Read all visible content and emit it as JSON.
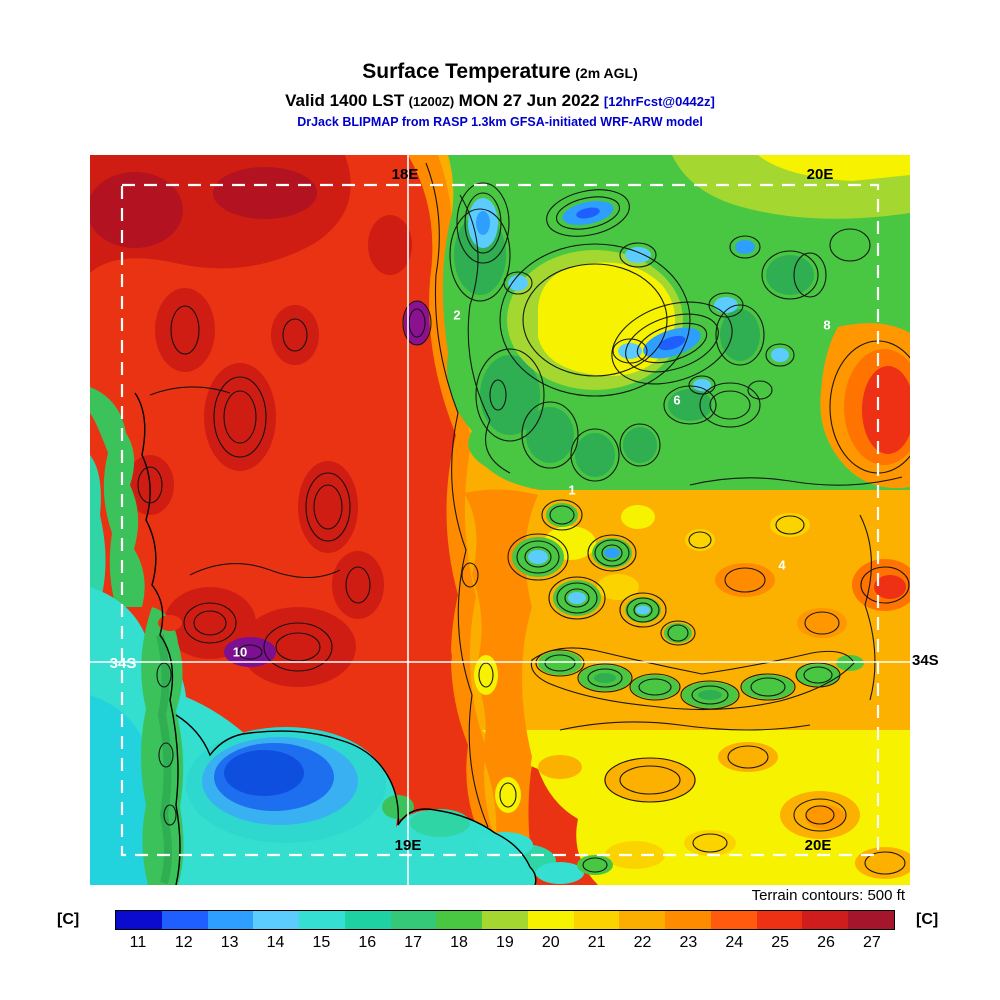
{
  "header": {
    "title": "Surface Temperature",
    "title_note": "(2m AGL)",
    "valid_prefix": "Valid 1400 LST",
    "valid_zulu": "(1200Z)",
    "valid_date": "MON 27 Jun 2022",
    "forecast_note": "[12hrFcst@0442z]",
    "model_line": "DrJack BLIPMAP from RASP 1.3km GFSA-initiated WRF-ARW model"
  },
  "map": {
    "grid_labels": {
      "top_meridian_18e": "18E",
      "top_meridian_20e": "20E",
      "left_parallel_34s": "34S",
      "right_parallel_34s": "34S",
      "bottom_meridian_19e": "19E",
      "bottom_meridian_20e": "20E"
    },
    "site_markers": [
      "2",
      "8",
      "6",
      "1",
      "4",
      "10"
    ],
    "footnote": "Terrain contours: 500 ft"
  },
  "colorbar": {
    "unit_left": "[C]",
    "unit_right": "[C]",
    "values": [
      11,
      12,
      13,
      14,
      15,
      16,
      17,
      18,
      19,
      20,
      21,
      22,
      23,
      24,
      25,
      26,
      27
    ],
    "colors": [
      "#0b0bd0",
      "#1f5fff",
      "#2f9fff",
      "#5cccff",
      "#35e0d2",
      "#1fd2a4",
      "#35c878",
      "#49c743",
      "#a4d830",
      "#f6f200",
      "#fbd400",
      "#fcae00",
      "#ff8c00",
      "#ff5a0e",
      "#ee3014",
      "#cf1d1d",
      "#a5152c"
    ]
  },
  "accent_colors": {
    "header_blue": "#0000cc",
    "land_hot_red": "#e93312",
    "ocean_cyan": "#35dfd0",
    "bay_blue": "#1e6ef0"
  }
}
